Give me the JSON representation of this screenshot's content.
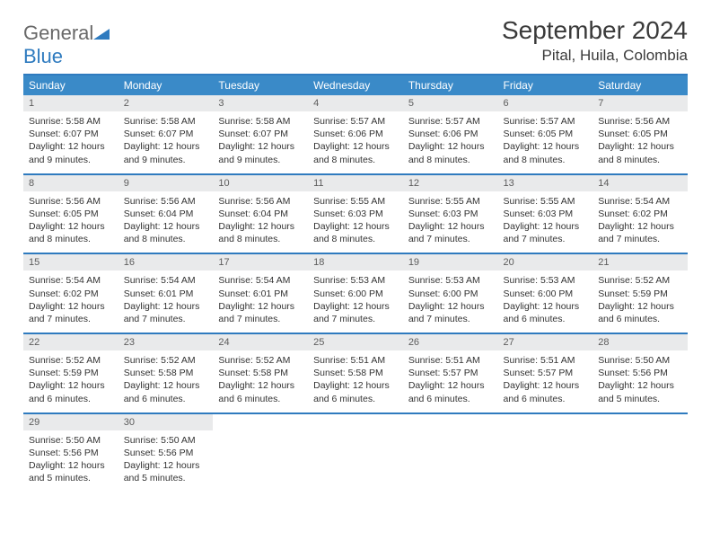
{
  "brand": {
    "part1": "General",
    "part2": "Blue"
  },
  "title": "September 2024",
  "location": "Pital, Huila, Colombia",
  "colors": {
    "header_bg": "#3a8ac8",
    "accent": "#2f7bbf",
    "daynum_bg": "#e9eaeb",
    "text": "#333333"
  },
  "day_labels": [
    "Sunday",
    "Monday",
    "Tuesday",
    "Wednesday",
    "Thursday",
    "Friday",
    "Saturday"
  ],
  "weeks": [
    {
      "cells": [
        {
          "n": "1",
          "sr": "Sunrise: 5:58 AM",
          "ss": "Sunset: 6:07 PM",
          "dl": "Daylight: 12 hours and 9 minutes."
        },
        {
          "n": "2",
          "sr": "Sunrise: 5:58 AM",
          "ss": "Sunset: 6:07 PM",
          "dl": "Daylight: 12 hours and 9 minutes."
        },
        {
          "n": "3",
          "sr": "Sunrise: 5:58 AM",
          "ss": "Sunset: 6:07 PM",
          "dl": "Daylight: 12 hours and 9 minutes."
        },
        {
          "n": "4",
          "sr": "Sunrise: 5:57 AM",
          "ss": "Sunset: 6:06 PM",
          "dl": "Daylight: 12 hours and 8 minutes."
        },
        {
          "n": "5",
          "sr": "Sunrise: 5:57 AM",
          "ss": "Sunset: 6:06 PM",
          "dl": "Daylight: 12 hours and 8 minutes."
        },
        {
          "n": "6",
          "sr": "Sunrise: 5:57 AM",
          "ss": "Sunset: 6:05 PM",
          "dl": "Daylight: 12 hours and 8 minutes."
        },
        {
          "n": "7",
          "sr": "Sunrise: 5:56 AM",
          "ss": "Sunset: 6:05 PM",
          "dl": "Daylight: 12 hours and 8 minutes."
        }
      ]
    },
    {
      "cells": [
        {
          "n": "8",
          "sr": "Sunrise: 5:56 AM",
          "ss": "Sunset: 6:05 PM",
          "dl": "Daylight: 12 hours and 8 minutes."
        },
        {
          "n": "9",
          "sr": "Sunrise: 5:56 AM",
          "ss": "Sunset: 6:04 PM",
          "dl": "Daylight: 12 hours and 8 minutes."
        },
        {
          "n": "10",
          "sr": "Sunrise: 5:56 AM",
          "ss": "Sunset: 6:04 PM",
          "dl": "Daylight: 12 hours and 8 minutes."
        },
        {
          "n": "11",
          "sr": "Sunrise: 5:55 AM",
          "ss": "Sunset: 6:03 PM",
          "dl": "Daylight: 12 hours and 8 minutes."
        },
        {
          "n": "12",
          "sr": "Sunrise: 5:55 AM",
          "ss": "Sunset: 6:03 PM",
          "dl": "Daylight: 12 hours and 7 minutes."
        },
        {
          "n": "13",
          "sr": "Sunrise: 5:55 AM",
          "ss": "Sunset: 6:03 PM",
          "dl": "Daylight: 12 hours and 7 minutes."
        },
        {
          "n": "14",
          "sr": "Sunrise: 5:54 AM",
          "ss": "Sunset: 6:02 PM",
          "dl": "Daylight: 12 hours and 7 minutes."
        }
      ]
    },
    {
      "cells": [
        {
          "n": "15",
          "sr": "Sunrise: 5:54 AM",
          "ss": "Sunset: 6:02 PM",
          "dl": "Daylight: 12 hours and 7 minutes."
        },
        {
          "n": "16",
          "sr": "Sunrise: 5:54 AM",
          "ss": "Sunset: 6:01 PM",
          "dl": "Daylight: 12 hours and 7 minutes."
        },
        {
          "n": "17",
          "sr": "Sunrise: 5:54 AM",
          "ss": "Sunset: 6:01 PM",
          "dl": "Daylight: 12 hours and 7 minutes."
        },
        {
          "n": "18",
          "sr": "Sunrise: 5:53 AM",
          "ss": "Sunset: 6:00 PM",
          "dl": "Daylight: 12 hours and 7 minutes."
        },
        {
          "n": "19",
          "sr": "Sunrise: 5:53 AM",
          "ss": "Sunset: 6:00 PM",
          "dl": "Daylight: 12 hours and 7 minutes."
        },
        {
          "n": "20",
          "sr": "Sunrise: 5:53 AM",
          "ss": "Sunset: 6:00 PM",
          "dl": "Daylight: 12 hours and 6 minutes."
        },
        {
          "n": "21",
          "sr": "Sunrise: 5:52 AM",
          "ss": "Sunset: 5:59 PM",
          "dl": "Daylight: 12 hours and 6 minutes."
        }
      ]
    },
    {
      "cells": [
        {
          "n": "22",
          "sr": "Sunrise: 5:52 AM",
          "ss": "Sunset: 5:59 PM",
          "dl": "Daylight: 12 hours and 6 minutes."
        },
        {
          "n": "23",
          "sr": "Sunrise: 5:52 AM",
          "ss": "Sunset: 5:58 PM",
          "dl": "Daylight: 12 hours and 6 minutes."
        },
        {
          "n": "24",
          "sr": "Sunrise: 5:52 AM",
          "ss": "Sunset: 5:58 PM",
          "dl": "Daylight: 12 hours and 6 minutes."
        },
        {
          "n": "25",
          "sr": "Sunrise: 5:51 AM",
          "ss": "Sunset: 5:58 PM",
          "dl": "Daylight: 12 hours and 6 minutes."
        },
        {
          "n": "26",
          "sr": "Sunrise: 5:51 AM",
          "ss": "Sunset: 5:57 PM",
          "dl": "Daylight: 12 hours and 6 minutes."
        },
        {
          "n": "27",
          "sr": "Sunrise: 5:51 AM",
          "ss": "Sunset: 5:57 PM",
          "dl": "Daylight: 12 hours and 6 minutes."
        },
        {
          "n": "28",
          "sr": "Sunrise: 5:50 AM",
          "ss": "Sunset: 5:56 PM",
          "dl": "Daylight: 12 hours and 5 minutes."
        }
      ]
    },
    {
      "cells": [
        {
          "n": "29",
          "sr": "Sunrise: 5:50 AM",
          "ss": "Sunset: 5:56 PM",
          "dl": "Daylight: 12 hours and 5 minutes."
        },
        {
          "n": "30",
          "sr": "Sunrise: 5:50 AM",
          "ss": "Sunset: 5:56 PM",
          "dl": "Daylight: 12 hours and 5 minutes."
        },
        {
          "empty": true
        },
        {
          "empty": true
        },
        {
          "empty": true
        },
        {
          "empty": true
        },
        {
          "empty": true
        }
      ]
    }
  ]
}
